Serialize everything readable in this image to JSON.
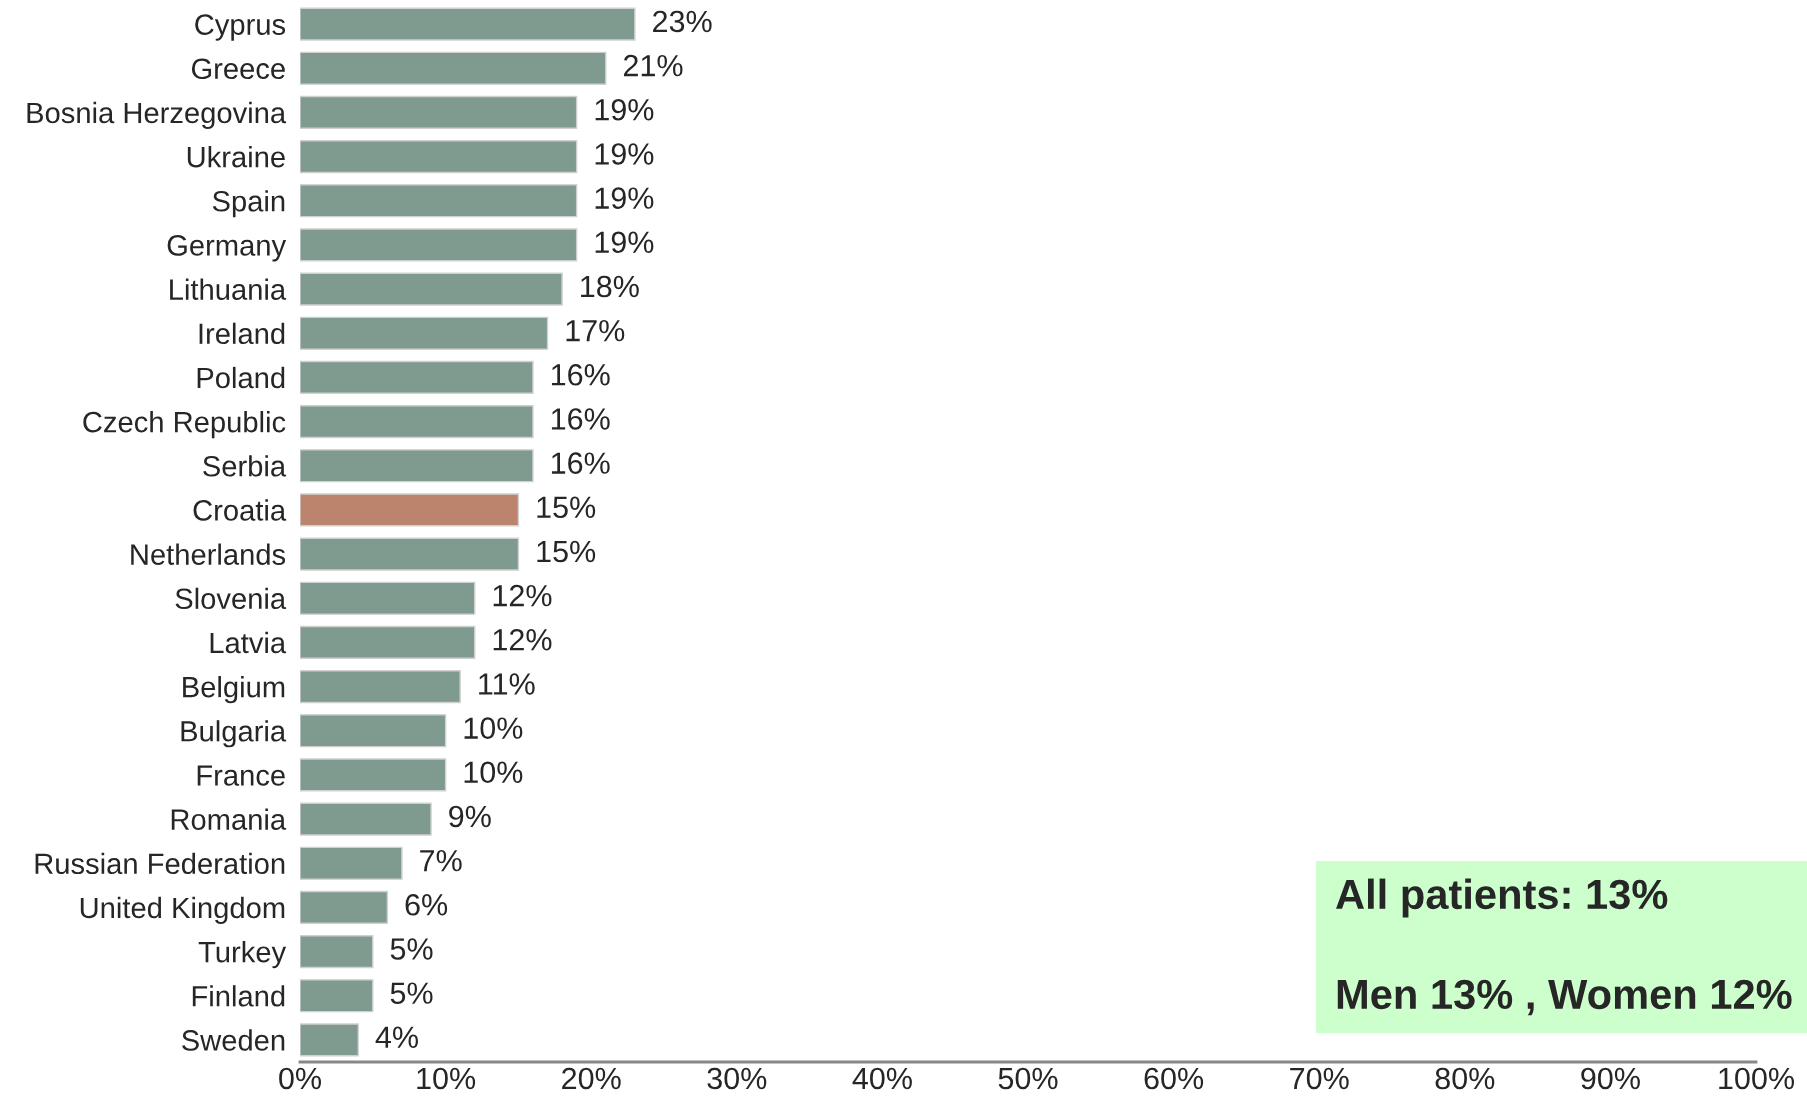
{
  "chart_data": {
    "type": "bar",
    "orientation": "horizontal",
    "categories": [
      "Cyprus",
      "Greece",
      "Bosnia Herzegovina",
      "Ukraine",
      "Spain",
      "Germany",
      "Lithuania",
      "Ireland",
      "Poland",
      "Czech Republic",
      "Serbia",
      "Croatia",
      "Netherlands",
      "Slovenia",
      "Latvia",
      "Belgium",
      "Bulgaria",
      "France",
      "Romania",
      "Russian Federation",
      "United Kingdom",
      "Turkey",
      "Finland",
      "Sweden"
    ],
    "values": [
      23,
      21,
      19,
      19,
      19,
      19,
      18,
      17,
      16,
      16,
      16,
      15,
      15,
      12,
      12,
      11,
      10,
      10,
      9,
      7,
      6,
      5,
      5,
      4
    ],
    "value_labels": [
      "23%",
      "21%",
      "19%",
      "19%",
      "19%",
      "19%",
      "18%",
      "17%",
      "16%",
      "16%",
      "16%",
      "15%",
      "15%",
      "12%",
      "12%",
      "11%",
      "10%",
      "10%",
      "9%",
      "7%",
      "6%",
      "5%",
      "5%",
      "4%"
    ],
    "colors": [
      "#7f9a8e",
      "#7f9a8e",
      "#7f9a8e",
      "#7f9a8e",
      "#7f9a8e",
      "#7f9a8e",
      "#7f9a8e",
      "#7f9a8e",
      "#7f9a8e",
      "#7f9a8e",
      "#7f9a8e",
      "#bd846d",
      "#7f9a8e",
      "#7f9a8e",
      "#7f9a8e",
      "#7f9a8e",
      "#7f9a8e",
      "#7f9a8e",
      "#7f9a8e",
      "#7f9a8e",
      "#7f9a8e",
      "#7f9a8e",
      "#7f9a8e",
      "#7f9a8e"
    ],
    "xlim": [
      0,
      100
    ],
    "xticks": [
      {
        "value": 0,
        "label": "0%"
      },
      {
        "value": 10,
        "label": "10%"
      },
      {
        "value": 20,
        "label": "20%"
      },
      {
        "value": 30,
        "label": "30%"
      },
      {
        "value": 40,
        "label": "40%"
      },
      {
        "value": 50,
        "label": "50%"
      },
      {
        "value": 60,
        "label": "60%"
      },
      {
        "value": 70,
        "label": "70%"
      },
      {
        "value": 80,
        "label": "80%"
      },
      {
        "value": 90,
        "label": "90%"
      },
      {
        "value": 100,
        "label": "100%"
      }
    ],
    "grid": false,
    "legend": false,
    "annotations": [
      "All patients: 13%",
      "Men 13% , Women 12%"
    ]
  }
}
